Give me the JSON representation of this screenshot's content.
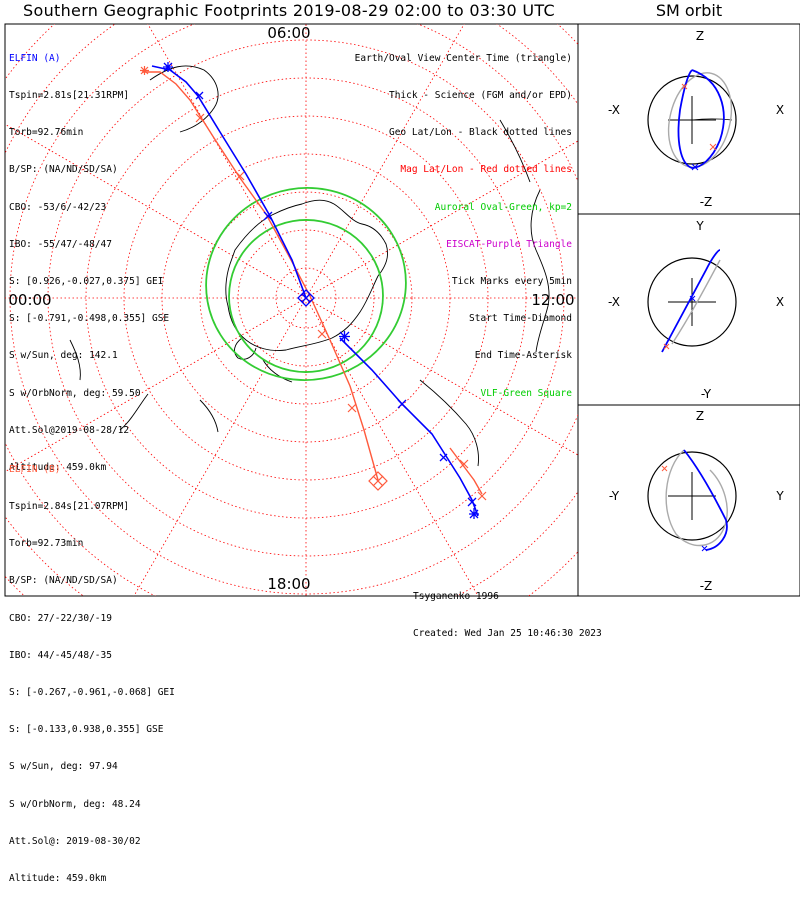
{
  "title": "Southern Geographic Footprints 2019-08-29 02:00 to 03:30 UTC",
  "sm_title": "SM orbit",
  "time_labels": {
    "top": "06:00",
    "left": "00:00",
    "right": "12:00",
    "bottom": "18:00"
  },
  "elfin_a": {
    "name": "ELFIN (A)",
    "color": "#0000ff",
    "lines": [
      "Tspin=2.81s[21.31RPM]",
      "Torb=92.76min",
      "B/SP: (NA/ND/SD/SA)",
      "CBO: -53/6/-42/23",
      "IBO: -55/47/-48/47",
      "S: [0.926,-0.027,0.375] GEI",
      "S: [-0.791,-0.498,0.355] GSE",
      "S w/Sun, deg: 142.1",
      "S w/OrbNorm, deg: 59.50",
      "Att.Sol@2019-08-28/12",
      "Altitude: 459.0km"
    ]
  },
  "elfin_b": {
    "name": "ELFIN (B)",
    "color": "#ff5a3c",
    "lines": [
      "Tspin=2.84s[21.07RPM]",
      "Torb=92.73min",
      "B/SP: (NA/ND/SD/SA)",
      "CBO: 27/-22/30/-19",
      "IBO: 44/-45/48/-35",
      "S: [-0.267,-0.961,-0.068] GEI",
      "S: [-0.133,0.938,0.355] GSE",
      "S w/Sun, deg: 97.94",
      "S w/OrbNorm, deg: 48.24",
      "Att.Sol@: 2019-08-30/02",
      "Altitude: 459.0km"
    ]
  },
  "legend": [
    {
      "text": "Earth/Oval View Center Time (triangle)",
      "color": "#000000"
    },
    {
      "text": "Thick - Science (FGM and/or EPD)",
      "color": "#000000"
    },
    {
      "text": "Geo Lat/Lon - Black dotted lines",
      "color": "#000000"
    },
    {
      "text": "Mag Lat/Lon - Red dotted lines",
      "color": "#ff0000"
    },
    {
      "text": "Auroral Oval-Green, kp=2",
      "color": "#00cc00"
    },
    {
      "text": "EISCAT-Purple Triangle",
      "color": "#cc00cc"
    },
    {
      "text": "Tick Marks every 5min",
      "color": "#000000"
    },
    {
      "text": "Start Time-Diamond",
      "color": "#000000"
    },
    {
      "text": "End Time-Asterisk",
      "color": "#000000"
    },
    {
      "text": "VLF-Green Square",
      "color": "#00cc00"
    }
  ],
  "credits": [
    "Tsyganenko-1996",
    "Created: Wed Jan 25 10:46:30 2023"
  ],
  "sm_panels": [
    {
      "top": "Z",
      "bottom": "-Z",
      "left": "-X",
      "right": "X"
    },
    {
      "top": "Y",
      "bottom": "-Y",
      "left": "-X",
      "right": "X"
    },
    {
      "top": "Z",
      "bottom": "-Z",
      "left": "-Y",
      "right": "Y"
    }
  ],
  "colors": {
    "grid_red": "#ff0000",
    "oval": "#33cc33",
    "gray": "#aaaaaa"
  }
}
